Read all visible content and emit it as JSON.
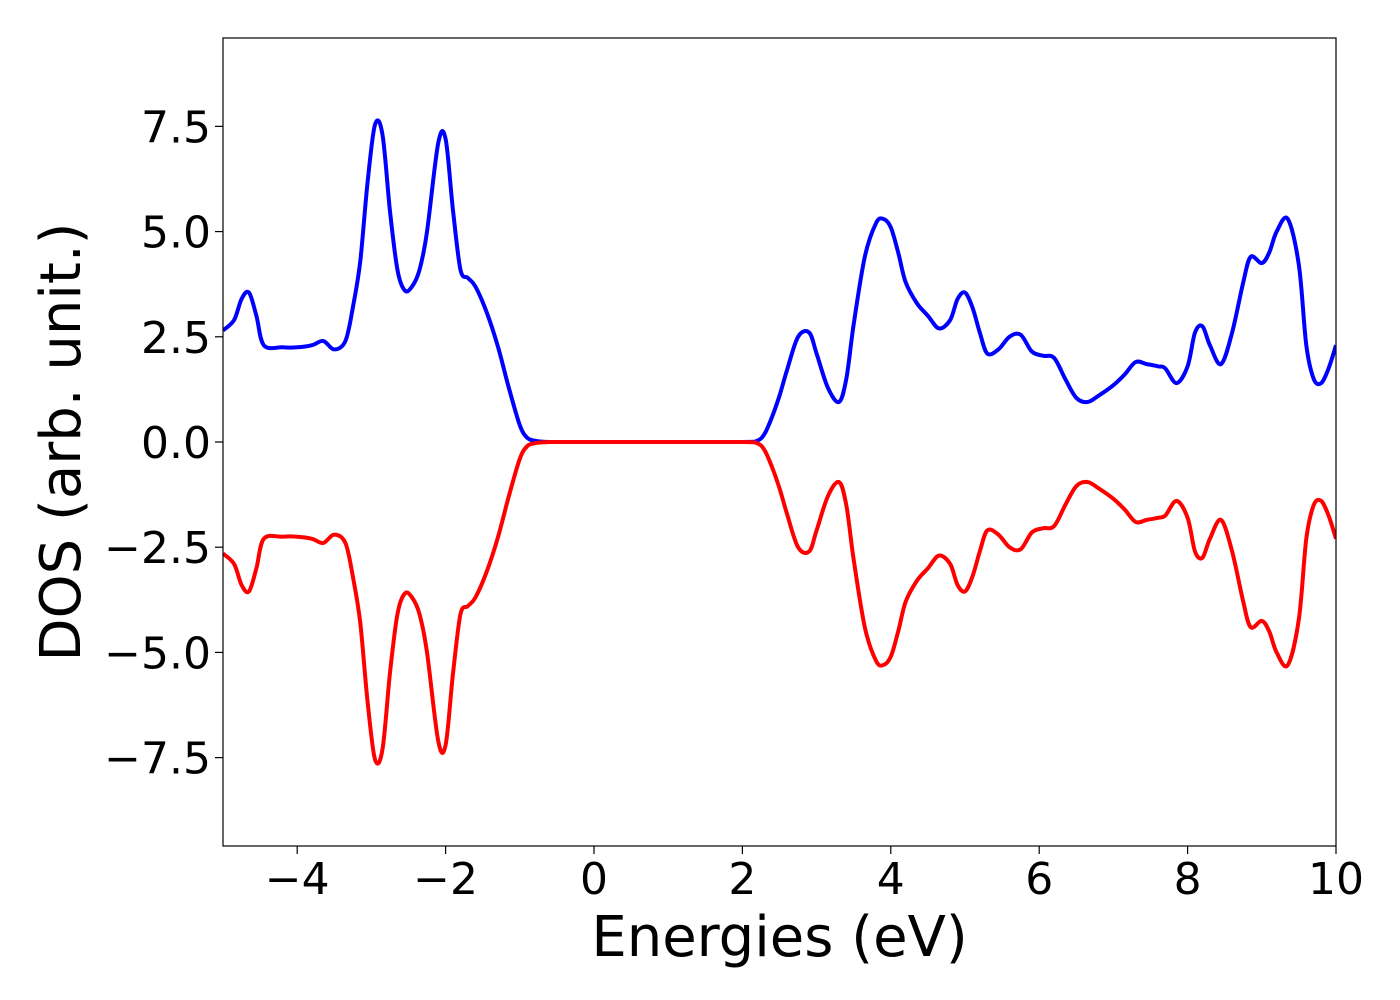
{
  "chart_data": {
    "type": "line",
    "title": "",
    "xlabel": "Energies (eV)",
    "ylabel": "DOS (arb. unit.)",
    "xlim": [
      -5,
      10
    ],
    "ylim": [
      -9.6,
      9.6
    ],
    "xticks": [
      -4,
      -2,
      0,
      2,
      4,
      6,
      8,
      10
    ],
    "xtick_labels": [
      "−4",
      "−2",
      "0",
      "2",
      "4",
      "6",
      "8",
      "10"
    ],
    "yticks": [
      -7.5,
      -5.0,
      -2.5,
      0.0,
      2.5,
      5.0,
      7.5
    ],
    "ytick_labels": [
      "−7.5",
      "−5.0",
      "−2.5",
      "0.0",
      "2.5",
      "5.0",
      "7.5"
    ],
    "grid": false,
    "legend": "none",
    "series": [
      {
        "color": "#0000ff",
        "x": [
          -5.0,
          -4.85,
          -4.75,
          -4.65,
          -4.55,
          -4.45,
          -4.2,
          -4.0,
          -3.8,
          -3.65,
          -3.5,
          -3.35,
          -3.25,
          -3.15,
          -3.05,
          -2.95,
          -2.85,
          -2.75,
          -2.65,
          -2.55,
          -2.45,
          -2.35,
          -2.25,
          -2.1,
          -2.0,
          -1.9,
          -1.8,
          -1.7,
          -1.6,
          -1.45,
          -1.3,
          -1.15,
          -1.0,
          -0.9,
          -0.8,
          -0.7,
          -0.6,
          -0.5,
          0.0,
          1.0,
          2.0,
          2.2,
          2.3,
          2.4,
          2.5,
          2.6,
          2.75,
          2.9,
          3.0,
          3.15,
          3.3,
          3.4,
          3.5,
          3.65,
          3.8,
          3.9,
          4.0,
          4.1,
          4.2,
          4.35,
          4.5,
          4.65,
          4.8,
          4.9,
          5.0,
          5.1,
          5.2,
          5.3,
          5.45,
          5.6,
          5.75,
          5.9,
          6.05,
          6.2,
          6.35,
          6.5,
          6.65,
          6.8,
          7.0,
          7.15,
          7.3,
          7.45,
          7.6,
          7.7,
          7.85,
          8.0,
          8.1,
          8.2,
          8.3,
          8.45,
          8.6,
          8.75,
          8.85,
          9.0,
          9.1,
          9.2,
          9.35,
          9.5,
          9.6,
          9.7,
          9.8,
          9.9,
          10.0
        ],
        "y": [
          2.65,
          2.9,
          3.4,
          3.55,
          3.0,
          2.3,
          2.25,
          2.25,
          2.3,
          2.4,
          2.2,
          2.4,
          3.2,
          4.3,
          6.2,
          7.55,
          7.3,
          5.5,
          4.1,
          3.6,
          3.7,
          4.1,
          5.0,
          7.1,
          7.2,
          5.5,
          4.1,
          3.9,
          3.7,
          3.1,
          2.3,
          1.3,
          0.4,
          0.1,
          0.03,
          0.01,
          0.0,
          0.0,
          0.0,
          0.0,
          0.0,
          0.03,
          0.2,
          0.6,
          1.1,
          1.7,
          2.5,
          2.6,
          2.1,
          1.3,
          0.95,
          1.5,
          2.8,
          4.4,
          5.2,
          5.3,
          5.1,
          4.5,
          3.8,
          3.3,
          3.0,
          2.7,
          2.9,
          3.4,
          3.55,
          3.2,
          2.6,
          2.1,
          2.2,
          2.5,
          2.55,
          2.15,
          2.05,
          2.0,
          1.5,
          1.05,
          0.95,
          1.1,
          1.35,
          1.6,
          1.9,
          1.85,
          1.8,
          1.75,
          1.4,
          1.8,
          2.6,
          2.75,
          2.3,
          1.85,
          2.6,
          3.8,
          4.4,
          4.25,
          4.5,
          5.0,
          5.3,
          4.2,
          2.3,
          1.5,
          1.4,
          1.75,
          2.3
        ]
      },
      {
        "color": "#ff0000",
        "x": [
          -5.0,
          -4.85,
          -4.75,
          -4.65,
          -4.55,
          -4.45,
          -4.2,
          -4.0,
          -3.8,
          -3.65,
          -3.5,
          -3.35,
          -3.25,
          -3.15,
          -3.05,
          -2.95,
          -2.85,
          -2.75,
          -2.65,
          -2.55,
          -2.45,
          -2.35,
          -2.25,
          -2.1,
          -2.0,
          -1.9,
          -1.8,
          -1.7,
          -1.6,
          -1.45,
          -1.3,
          -1.15,
          -1.0,
          -0.9,
          -0.8,
          -0.7,
          -0.6,
          -0.5,
          0.0,
          1.0,
          2.0,
          2.2,
          2.3,
          2.4,
          2.5,
          2.6,
          2.75,
          2.9,
          3.0,
          3.15,
          3.3,
          3.4,
          3.5,
          3.65,
          3.8,
          3.9,
          4.0,
          4.1,
          4.2,
          4.35,
          4.5,
          4.65,
          4.8,
          4.9,
          5.0,
          5.1,
          5.2,
          5.3,
          5.45,
          5.6,
          5.75,
          5.9,
          6.05,
          6.2,
          6.35,
          6.5,
          6.65,
          6.8,
          7.0,
          7.15,
          7.3,
          7.45,
          7.6,
          7.7,
          7.85,
          8.0,
          8.1,
          8.2,
          8.3,
          8.45,
          8.6,
          8.75,
          8.85,
          9.0,
          9.1,
          9.2,
          9.35,
          9.5,
          9.6,
          9.7,
          9.8,
          9.9,
          10.0
        ],
        "y": [
          -2.65,
          -2.9,
          -3.4,
          -3.55,
          -3.0,
          -2.3,
          -2.25,
          -2.25,
          -2.3,
          -2.4,
          -2.2,
          -2.4,
          -3.2,
          -4.3,
          -6.2,
          -7.55,
          -7.3,
          -5.5,
          -4.1,
          -3.6,
          -3.7,
          -4.1,
          -5.0,
          -7.1,
          -7.2,
          -5.5,
          -4.1,
          -3.9,
          -3.7,
          -3.1,
          -2.3,
          -1.3,
          -0.4,
          -0.1,
          -0.03,
          -0.01,
          0.0,
          0.0,
          0.0,
          0.0,
          0.0,
          -0.03,
          -0.2,
          -0.6,
          -1.1,
          -1.7,
          -2.5,
          -2.6,
          -2.1,
          -1.3,
          -0.95,
          -1.5,
          -2.8,
          -4.4,
          -5.2,
          -5.3,
          -5.1,
          -4.5,
          -3.8,
          -3.3,
          -3.0,
          -2.7,
          -2.9,
          -3.4,
          -3.55,
          -3.2,
          -2.6,
          -2.1,
          -2.2,
          -2.5,
          -2.55,
          -2.15,
          -2.05,
          -2.0,
          -1.5,
          -1.05,
          -0.95,
          -1.1,
          -1.35,
          -1.6,
          -1.9,
          -1.85,
          -1.8,
          -1.75,
          -1.4,
          -1.8,
          -2.6,
          -2.75,
          -2.3,
          -1.85,
          -2.6,
          -3.8,
          -4.4,
          -4.25,
          -4.5,
          -5.0,
          -5.3,
          -4.2,
          -2.3,
          -1.5,
          -1.4,
          -1.75,
          -2.3
        ]
      }
    ]
  }
}
